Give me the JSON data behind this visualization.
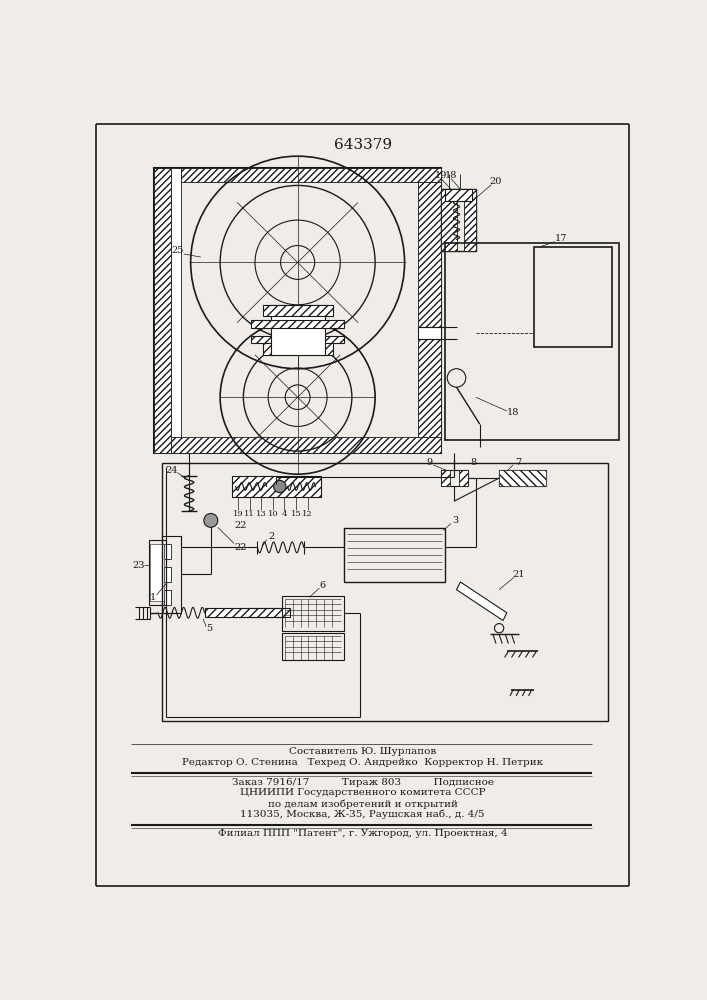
{
  "patent_number": "643379",
  "bg": "#f0ede8",
  "lc": "#1a1a1a",
  "footer_lines": [
    "Составитель Ю. Шурлапов",
    "Редактор О. Стенина   Техред О. Андрейко  Корректор Н. Петрик",
    "Заказ 7916/17          Тираж 803          Подписное",
    "ЦНИИПИ Государственного комитета СССР",
    "по делам изобретений и открытий",
    "113035, Москва, Ж-35, Раушская наб., д. 4/5",
    "Филиал ППП \"Патент\", г. Ужгород, ул. Проектная, 4"
  ]
}
